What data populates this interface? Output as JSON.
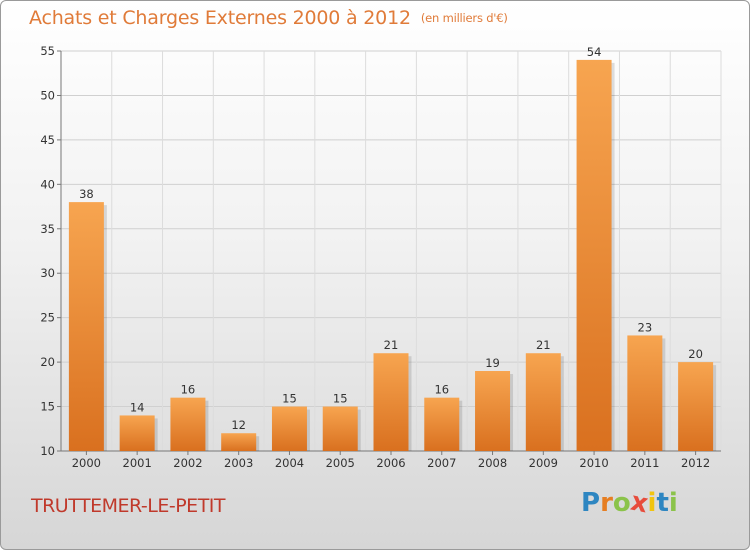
{
  "header": {
    "title": "Achats et Charges Externes 2000 à 2012",
    "subtitle": "(en milliers d'€)"
  },
  "footer": {
    "city": "TRUTTEMER-LE-PETIT",
    "logo_letters": [
      {
        "char": "P",
        "color": "#2e86c1"
      },
      {
        "char": "r",
        "color": "#e67e22"
      },
      {
        "char": "o",
        "color": "#8bc34a"
      },
      {
        "char": "x",
        "color": "#e74c3c"
      },
      {
        "char": "i",
        "color": "#f1c40f"
      },
      {
        "char": "t",
        "color": "#2e86c1"
      },
      {
        "char": "i",
        "color": "#8bc34a"
      }
    ]
  },
  "chart_data": {
    "type": "bar",
    "categories": [
      "2000",
      "2001",
      "2002",
      "2003",
      "2004",
      "2005",
      "2006",
      "2007",
      "2008",
      "2009",
      "2010",
      "2011",
      "2012"
    ],
    "values": [
      38,
      14,
      16,
      12,
      15,
      15,
      21,
      16,
      19,
      21,
      54,
      23,
      20
    ],
    "title": "Achats et Charges Externes 2000 à 2012",
    "subtitle": "(en milliers d'€)",
    "xlabel": "",
    "ylabel": "",
    "ylim": [
      10,
      55
    ],
    "yticks": [
      10,
      15,
      20,
      25,
      30,
      35,
      40,
      45,
      50,
      55
    ],
    "grid": true,
    "bar_color_top": "#f7a550",
    "bar_color_bottom": "#d9701f"
  }
}
